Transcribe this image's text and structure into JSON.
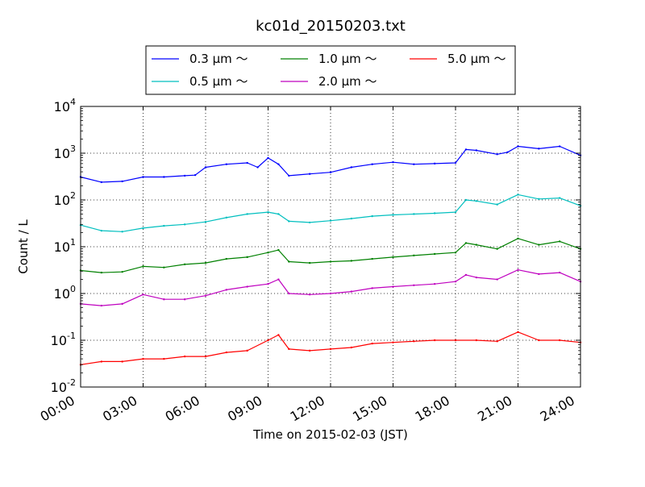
{
  "chart_data": {
    "type": "line",
    "title": "kc01d_20150203.txt",
    "xlabel": "Time on 2015-02-03 (JST)",
    "ylabel": "Count / L",
    "yscale": "log",
    "ylim": [
      0.01,
      10000
    ],
    "xlim": [
      "00:00",
      "24:00"
    ],
    "grid": true,
    "legend_position": "upper-center",
    "x_ticks": [
      "00:00",
      "03:00",
      "06:00",
      "09:00",
      "12:00",
      "15:00",
      "18:00",
      "21:00",
      "24:00"
    ],
    "y_ticks": [
      {
        "base": "10",
        "exp": "-2"
      },
      {
        "base": "10",
        "exp": "-1"
      },
      {
        "base": "10",
        "exp": "0"
      },
      {
        "base": "10",
        "exp": "1"
      },
      {
        "base": "10",
        "exp": "2"
      },
      {
        "base": "10",
        "exp": "3"
      },
      {
        "base": "10",
        "exp": "4"
      }
    ],
    "series": [
      {
        "name": "0.3 μm ～",
        "color": "#0000ff",
        "x": [
          "00:00",
          "01:00",
          "02:00",
          "03:00",
          "04:00",
          "05:00",
          "05:30",
          "06:00",
          "07:00",
          "08:00",
          "08:30",
          "09:00",
          "09:30",
          "10:00",
          "11:00",
          "12:00",
          "13:00",
          "14:00",
          "15:00",
          "16:00",
          "17:00",
          "18:00",
          "18:30",
          "19:00",
          "20:00",
          "20:30",
          "21:00",
          "22:00",
          "23:00",
          "24:00"
        ],
        "values": [
          310,
          240,
          250,
          310,
          310,
          330,
          340,
          500,
          580,
          620,
          500,
          790,
          580,
          330,
          360,
          390,
          500,
          580,
          640,
          580,
          600,
          620,
          1200,
          1150,
          950,
          1050,
          1400,
          1250,
          1400,
          900
        ]
      },
      {
        "name": "0.5 μm ～",
        "color": "#00bfbf",
        "x": [
          "00:00",
          "01:00",
          "02:00",
          "03:00",
          "04:00",
          "05:00",
          "06:00",
          "07:00",
          "08:00",
          "09:00",
          "09:30",
          "10:00",
          "11:00",
          "12:00",
          "13:00",
          "14:00",
          "15:00",
          "16:00",
          "17:00",
          "18:00",
          "18:30",
          "19:00",
          "20:00",
          "21:00",
          "22:00",
          "23:00",
          "24:00"
        ],
        "values": [
          29,
          22,
          21,
          25,
          28,
          30,
          34,
          42,
          50,
          55,
          50,
          35,
          33,
          36,
          40,
          45,
          48,
          50,
          52,
          55,
          100,
          95,
          80,
          130,
          105,
          110,
          75
        ]
      },
      {
        "name": "1.0 μm ～",
        "color": "#008000",
        "x": [
          "00:00",
          "01:00",
          "02:00",
          "03:00",
          "04:00",
          "05:00",
          "06:00",
          "07:00",
          "08:00",
          "09:00",
          "09:30",
          "10:00",
          "11:00",
          "12:00",
          "13:00",
          "14:00",
          "15:00",
          "16:00",
          "17:00",
          "18:00",
          "18:30",
          "19:00",
          "20:00",
          "21:00",
          "22:00",
          "23:00",
          "24:00"
        ],
        "values": [
          3.1,
          2.8,
          2.9,
          3.8,
          3.6,
          4.2,
          4.5,
          5.5,
          6.0,
          7.5,
          8.5,
          4.8,
          4.5,
          4.8,
          5.0,
          5.5,
          6.0,
          6.5,
          7.0,
          7.5,
          12,
          11,
          9,
          15,
          11,
          13,
          9
        ]
      },
      {
        "name": "2.0 μm ～",
        "color": "#bf00bf",
        "x": [
          "00:00",
          "01:00",
          "02:00",
          "03:00",
          "04:00",
          "05:00",
          "06:00",
          "07:00",
          "08:00",
          "09:00",
          "09:30",
          "10:00",
          "11:00",
          "12:00",
          "13:00",
          "14:00",
          "15:00",
          "16:00",
          "17:00",
          "18:00",
          "18:30",
          "19:00",
          "20:00",
          "21:00",
          "22:00",
          "23:00",
          "24:00"
        ],
        "values": [
          0.6,
          0.55,
          0.6,
          0.95,
          0.75,
          0.75,
          0.9,
          1.2,
          1.4,
          1.6,
          2.0,
          1.0,
          0.95,
          1.0,
          1.1,
          1.3,
          1.4,
          1.5,
          1.6,
          1.8,
          2.5,
          2.2,
          2.0,
          3.2,
          2.6,
          2.8,
          1.8
        ]
      },
      {
        "name": "5.0 μm ～",
        "color": "#ff0000",
        "x": [
          "00:00",
          "01:00",
          "02:00",
          "03:00",
          "04:00",
          "05:00",
          "06:00",
          "07:00",
          "08:00",
          "09:00",
          "09:30",
          "10:00",
          "11:00",
          "12:00",
          "13:00",
          "14:00",
          "15:00",
          "16:00",
          "17:00",
          "18:00",
          "19:00",
          "20:00",
          "21:00",
          "22:00",
          "23:00",
          "24:00"
        ],
        "values": [
          0.03,
          0.035,
          0.035,
          0.04,
          0.04,
          0.045,
          0.045,
          0.055,
          0.06,
          0.1,
          0.13,
          0.065,
          0.06,
          0.065,
          0.07,
          0.085,
          0.09,
          0.095,
          0.1,
          0.1,
          0.1,
          0.095,
          0.15,
          0.1,
          0.1,
          0.09
        ]
      }
    ]
  }
}
